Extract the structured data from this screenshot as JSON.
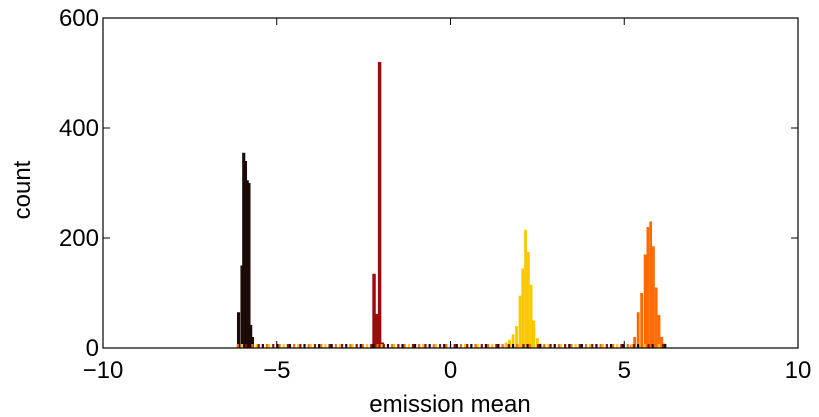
{
  "chart_data": {
    "type": "bar",
    "title": "",
    "xlabel": "emission mean",
    "ylabel": "count",
    "xlim": [
      -10,
      10
    ],
    "ylim": [
      0,
      600
    ],
    "xticks": [
      -10,
      -5,
      0,
      5,
      10
    ],
    "xtick_labels": [
      "−10",
      "−5",
      "0",
      "5",
      "10"
    ],
    "yticks": [
      0,
      200,
      400,
      600
    ],
    "ytick_labels": [
      "0",
      "200",
      "400",
      "600"
    ],
    "grid": false,
    "legend": "none",
    "series": [
      {
        "color": "#1a0a08",
        "bin_width": 0.09,
        "x": [
          -6.1,
          -6.0,
          -5.95,
          -5.9,
          -5.85,
          -5.8,
          -5.75,
          -5.7
        ],
        "values": [
          65,
          150,
          355,
          340,
          305,
          300,
          42,
          20
        ]
      },
      {
        "color": "#9b0d0d",
        "bin_width": 0.1,
        "x": [
          -2.2,
          -2.12,
          -2.04,
          -1.96
        ],
        "values": [
          135,
          62,
          520,
          10
        ]
      },
      {
        "color": "#f9c800",
        "bin_width": 0.08,
        "x": [
          1.5,
          1.6,
          1.7,
          1.8,
          1.9,
          2.0,
          2.08,
          2.16,
          2.24,
          2.32,
          2.4,
          2.5,
          2.6,
          2.7
        ],
        "values": [
          4,
          10,
          15,
          25,
          40,
          95,
          145,
          215,
          175,
          115,
          50,
          18,
          8,
          4
        ]
      },
      {
        "color": "#ff6a00",
        "bin_width": 0.08,
        "x": [
          5.2,
          5.3,
          5.4,
          5.5,
          5.6,
          5.68,
          5.76,
          5.84,
          5.92,
          6.0,
          6.08,
          6.16
        ],
        "values": [
          5,
          20,
          65,
          100,
          170,
          220,
          230,
          185,
          110,
          60,
          20,
          8
        ]
      }
    ],
    "rug_range": [
      -6.1,
      6.2
    ]
  }
}
